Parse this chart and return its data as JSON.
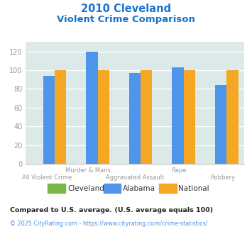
{
  "title_line1": "2010 Cleveland",
  "title_line2": "Violent Crime Comparison",
  "title_color": "#1874cd",
  "group_labels_top": [
    "",
    "Murder & Mans...",
    "",
    "Rape",
    ""
  ],
  "group_labels_bot": [
    "All Violent Crime",
    "",
    "Aggravated Assault",
    "",
    "Robbery"
  ],
  "cleveland_vals": [
    0,
    0,
    0,
    0,
    0
  ],
  "alabama_vals": [
    94,
    120,
    97,
    103,
    84
  ],
  "national_vals": [
    100,
    100,
    100,
    100,
    100
  ],
  "cleveland_color": "#7ab648",
  "alabama_color": "#4d94eb",
  "national_color": "#f5a623",
  "bg_color": "#dce9e9",
  "ylim": [
    0,
    130
  ],
  "yticks": [
    0,
    20,
    40,
    60,
    80,
    100,
    120
  ],
  "legend_labels": [
    "Cleveland",
    "Alabama",
    "National"
  ],
  "footnote1": "Compared to U.S. average. (U.S. average equals 100)",
  "footnote2": "© 2025 CityRating.com - https://www.cityrating.com/crime-statistics/",
  "footnote1_color": "#222222",
  "footnote2_color": "#4d94eb",
  "tick_color": "#999999"
}
